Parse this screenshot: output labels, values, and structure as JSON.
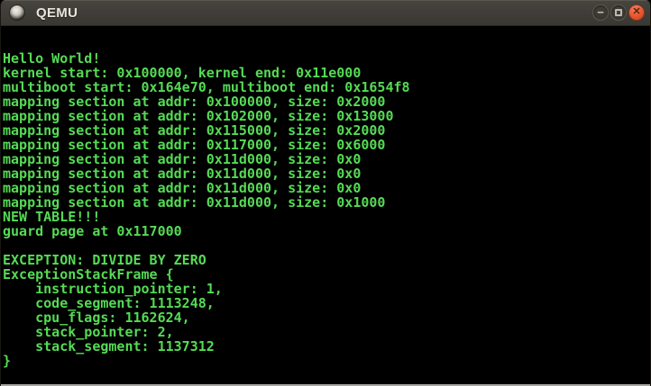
{
  "titlebar": {
    "title": "QEMU",
    "minimize_glyph": "−",
    "close_glyph": "✕"
  },
  "terminal": {
    "lines": [
      "Hello World!",
      "kernel start: 0x100000, kernel end: 0x11e000",
      "multiboot start: 0x164e70, multiboot end: 0x1654f8",
      "mapping section at addr: 0x100000, size: 0x2000",
      "mapping section at addr: 0x102000, size: 0x13000",
      "mapping section at addr: 0x115000, size: 0x2000",
      "mapping section at addr: 0x117000, size: 0x6000",
      "mapping section at addr: 0x11d000, size: 0x0",
      "mapping section at addr: 0x11d000, size: 0x0",
      "mapping section at addr: 0x11d000, size: 0x0",
      "mapping section at addr: 0x11d000, size: 0x1000",
      "NEW TABLE!!!",
      "guard page at 0x117000",
      "",
      "EXCEPTION: DIVIDE BY ZERO",
      "ExceptionStackFrame {",
      "    instruction_pointer: 1,",
      "    code_segment: 1113248,",
      "    cpu_flags: 1162624,",
      "    stack_pointer: 2,",
      "    stack_segment: 1137312",
      "}"
    ]
  },
  "colors": {
    "terminal_text": "#55db55",
    "terminal_bg": "#000000",
    "close_button": "#e2512b"
  }
}
